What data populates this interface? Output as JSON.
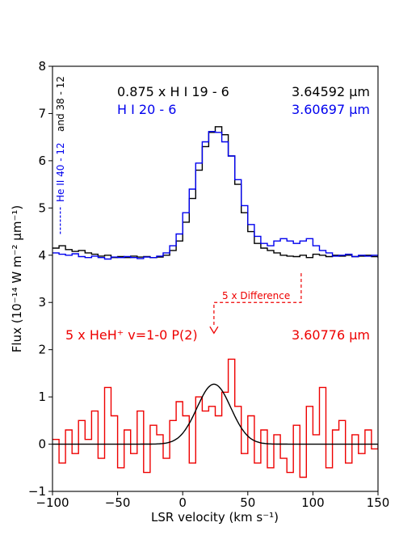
{
  "chart_data": {
    "type": "line",
    "xlabel": "LSR velocity (km s⁻¹)",
    "ylabel": "Flux (10⁻¹⁴ W m⁻² μm⁻¹)",
    "xlim": [
      -100,
      150
    ],
    "ylim": [
      -1,
      8
    ],
    "xticks": [
      -100,
      -50,
      0,
      50,
      100,
      150
    ],
    "yticks": [
      -1,
      0,
      1,
      2,
      3,
      4,
      5,
      6,
      7,
      8
    ],
    "annotations": {
      "hi19_label": "0.875 x H I 19 - 6",
      "hi19_wavelength": "3.64592 μm",
      "hi20_label": "H I 20 - 6",
      "hi20_wavelength": "3.60697 μm",
      "heii_label": "He II 40 - 12",
      "heii_and": "and 38 - 12",
      "difference_label": "5 x Difference",
      "heh_label": "5 x HeH⁺ v=1-0 P(2)",
      "heh_wavelength": "3.60776 μm"
    },
    "colors": {
      "hi19": "#000000",
      "hi20": "#0000ee",
      "heh": "#ee0000",
      "fit": "#000000"
    },
    "series": [
      {
        "name": "0.875 x H I 19 - 6",
        "color": "#000000",
        "x": [
          -100,
          -95,
          -90,
          -85,
          -80,
          -75,
          -70,
          -65,
          -60,
          -55,
          -50,
          -45,
          -40,
          -35,
          -30,
          -25,
          -20,
          -15,
          -10,
          -5,
          0,
          5,
          10,
          15,
          20,
          25,
          30,
          35,
          40,
          45,
          50,
          55,
          60,
          65,
          70,
          75,
          80,
          85,
          90,
          95,
          100,
          105,
          110,
          115,
          120,
          125,
          130,
          135,
          140,
          145,
          150
        ],
        "y": [
          4.15,
          4.2,
          4.12,
          4.08,
          4.1,
          4.05,
          4.02,
          3.98,
          4.0,
          3.95,
          3.97,
          3.95,
          3.98,
          3.96,
          3.97,
          3.95,
          3.96,
          4.0,
          4.1,
          4.3,
          4.7,
          5.2,
          5.8,
          6.3,
          6.6,
          6.72,
          6.55,
          6.1,
          5.5,
          4.9,
          4.5,
          4.25,
          4.15,
          4.1,
          4.05,
          4.0,
          3.98,
          3.97,
          4.0,
          3.95,
          4.02,
          4.0,
          3.97,
          4.0,
          3.98,
          4.0,
          3.97,
          3.98,
          4.0,
          3.97,
          3.95
        ]
      },
      {
        "name": "H I 20 - 6",
        "color": "#0000ee",
        "x": [
          -100,
          -95,
          -90,
          -85,
          -80,
          -75,
          -70,
          -65,
          -60,
          -55,
          -50,
          -45,
          -40,
          -35,
          -30,
          -25,
          -20,
          -15,
          -10,
          -5,
          0,
          5,
          10,
          15,
          20,
          25,
          30,
          35,
          40,
          45,
          50,
          55,
          60,
          65,
          70,
          75,
          80,
          85,
          90,
          95,
          100,
          105,
          110,
          115,
          120,
          125,
          130,
          135,
          140,
          145,
          150
        ],
        "y": [
          4.05,
          4.02,
          4.0,
          4.03,
          3.97,
          3.95,
          3.98,
          3.95,
          3.92,
          3.96,
          3.95,
          3.97,
          3.95,
          3.93,
          3.96,
          3.95,
          3.98,
          4.05,
          4.2,
          4.45,
          4.9,
          5.4,
          5.95,
          6.4,
          6.62,
          6.6,
          6.4,
          6.1,
          5.6,
          5.05,
          4.65,
          4.4,
          4.25,
          4.2,
          4.3,
          4.35,
          4.3,
          4.25,
          4.3,
          4.35,
          4.2,
          4.1,
          4.05,
          3.98,
          4.0,
          4.02,
          3.97,
          4.0,
          3.98,
          4.0,
          3.95
        ]
      },
      {
        "name": "5 x HeH⁺ v=1-0 P(2)",
        "color": "#ee0000",
        "x": [
          -100,
          -95,
          -90,
          -85,
          -80,
          -75,
          -70,
          -65,
          -60,
          -55,
          -50,
          -45,
          -40,
          -35,
          -30,
          -25,
          -20,
          -15,
          -10,
          -5,
          0,
          5,
          10,
          15,
          20,
          25,
          30,
          35,
          40,
          45,
          50,
          55,
          60,
          65,
          70,
          75,
          80,
          85,
          90,
          95,
          100,
          105,
          110,
          115,
          120,
          125,
          130,
          135,
          140,
          145,
          150
        ],
        "y": [
          0.1,
          -0.4,
          0.3,
          -0.2,
          0.5,
          0.1,
          0.7,
          -0.3,
          1.2,
          0.6,
          -0.5,
          0.3,
          -0.2,
          0.7,
          -0.6,
          0.4,
          0.2,
          -0.3,
          0.5,
          0.9,
          0.6,
          -0.4,
          1.0,
          0.7,
          0.8,
          0.6,
          1.1,
          1.8,
          0.8,
          -0.2,
          0.6,
          -0.4,
          0.3,
          -0.5,
          0.2,
          -0.3,
          -0.6,
          0.4,
          -0.7,
          0.8,
          0.2,
          1.2,
          -0.5,
          0.3,
          0.5,
          -0.4,
          0.2,
          -0.2,
          0.3,
          -0.1,
          0.0
        ]
      },
      {
        "name": "Gaussian fit",
        "color": "#000000",
        "gaussian": {
          "amplitude": 1.27,
          "center": 24,
          "sigma": 13
        }
      }
    ]
  }
}
